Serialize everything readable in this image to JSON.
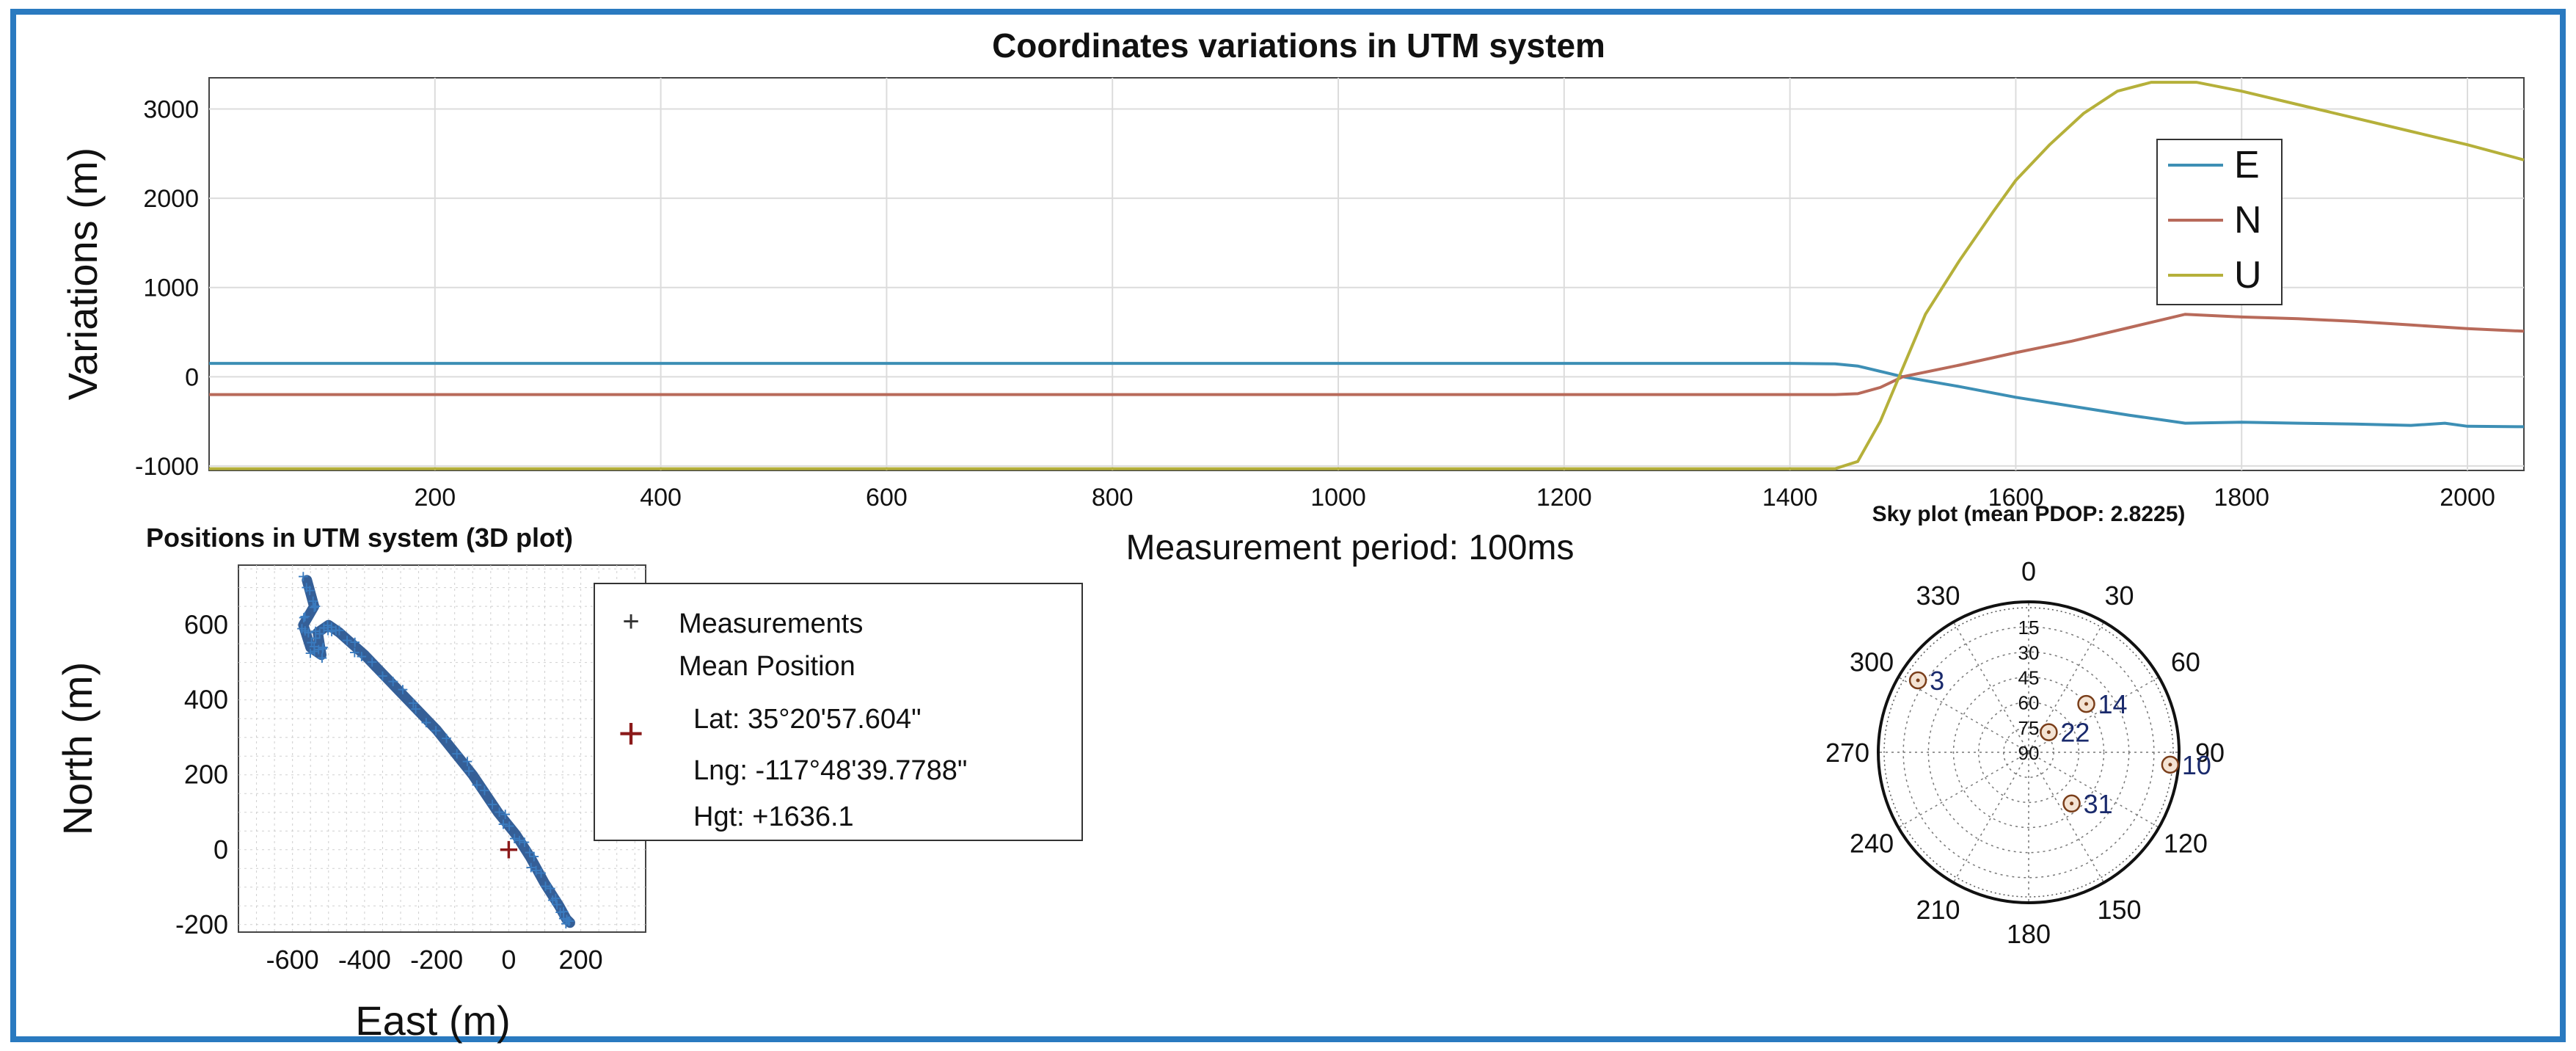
{
  "frame_color": "#2a7ac0",
  "chart_data": [
    {
      "id": "top",
      "type": "line",
      "title": "Coordinates variations in UTM system",
      "ylabel": "Variations (m)",
      "xlabel": "Measurement period: 100ms",
      "xlim": [
        0,
        2050
      ],
      "ylim": [
        -1050,
        3350
      ],
      "xticks": [
        200,
        400,
        600,
        800,
        1000,
        1200,
        1400,
        1600,
        1800,
        2000
      ],
      "yticks": [
        -1000,
        0,
        1000,
        2000,
        3000
      ],
      "grid": true,
      "legend_position": "top-right",
      "series": [
        {
          "name": "E",
          "color": "#3d8fb5",
          "x": [
            0,
            1400,
            1440,
            1460,
            1480,
            1500,
            1550,
            1600,
            1650,
            1700,
            1750,
            1800,
            1850,
            1900,
            1950,
            1980,
            2000,
            2050
          ],
          "y": [
            150,
            150,
            145,
            120,
            60,
            0,
            -110,
            -230,
            -330,
            -430,
            -520,
            -510,
            -520,
            -530,
            -545,
            -520,
            -555,
            -560
          ]
        },
        {
          "name": "N",
          "color": "#b86a5a",
          "x": [
            0,
            1400,
            1440,
            1460,
            1480,
            1500,
            1550,
            1600,
            1650,
            1700,
            1750,
            1800,
            1850,
            1900,
            1950,
            2000,
            2050
          ],
          "y": [
            -200,
            -200,
            -200,
            -190,
            -120,
            0,
            130,
            270,
            400,
            550,
            700,
            670,
            650,
            620,
            580,
            540,
            510
          ]
        },
        {
          "name": "U",
          "color": "#b5b03a",
          "x": [
            0,
            1440,
            1460,
            1480,
            1500,
            1520,
            1550,
            1580,
            1600,
            1630,
            1660,
            1690,
            1720,
            1760,
            1800,
            1850,
            1900,
            1950,
            2000,
            2050
          ],
          "y": [
            -1030,
            -1030,
            -950,
            -500,
            100,
            700,
            1300,
            1850,
            2200,
            2600,
            2950,
            3200,
            3300,
            3300,
            3200,
            3050,
            2900,
            2750,
            2600,
            2430
          ]
        }
      ]
    },
    {
      "id": "positions",
      "type": "scatter",
      "title": "Positions in UTM system (3D plot)",
      "xlabel": "East (m)",
      "ylabel": "North (m)",
      "xlim": [
        -750,
        380
      ],
      "ylim": [
        -220,
        760
      ],
      "xticks": [
        -600,
        -400,
        -200,
        0,
        200
      ],
      "yticks": [
        -200,
        0,
        200,
        400,
        600
      ],
      "grid": true,
      "series": [
        {
          "name": "Measurements",
          "marker": "+",
          "color": "#1f4e8c",
          "path": [
            [
              -560,
              720
            ],
            [
              -540,
              650
            ],
            [
              -570,
              600
            ],
            [
              -550,
              540
            ],
            [
              -520,
              520
            ],
            [
              -530,
              580
            ],
            [
              -500,
              600
            ],
            [
              -470,
              580
            ],
            [
              -400,
              520
            ],
            [
              -300,
              420
            ],
            [
              -200,
              320
            ],
            [
              -100,
              200
            ],
            [
              -30,
              100
            ],
            [
              20,
              40
            ],
            [
              60,
              -20
            ],
            [
              100,
              -90
            ],
            [
              140,
              -150
            ],
            [
              160,
              -185
            ],
            [
              170,
              -195
            ]
          ]
        },
        {
          "name": "Mean Position",
          "marker": "+",
          "color": "#8b1a1a",
          "x": 0,
          "y": 0
        }
      ],
      "legend": {
        "measurements": "Measurements",
        "mean_position": "Mean Position",
        "lat": "Lat: 35°20ʹ57.604ʺ",
        "lng": "Lng: -117°48ʹ39.7788ʺ",
        "hgt": "Hgt: +1636.1"
      }
    },
    {
      "id": "sky",
      "type": "polar",
      "title": "Sky plot (mean PDOP: 2.8225)",
      "azimuth_labels": [
        "0",
        "30",
        "60",
        "90",
        "120",
        "150",
        "180",
        "210",
        "240",
        "270",
        "300",
        "330"
      ],
      "elevation_labels": [
        "15",
        "30",
        "45",
        "60",
        "75",
        "90"
      ],
      "satellites": [
        {
          "prn": "3",
          "azimuth": 303,
          "elevation": 11
        },
        {
          "prn": "14",
          "azimuth": 50,
          "elevation": 45
        },
        {
          "prn": "22",
          "azimuth": 45,
          "elevation": 73
        },
        {
          "prn": "10",
          "azimuth": 95,
          "elevation": 5
        },
        {
          "prn": "31",
          "azimuth": 140,
          "elevation": 50
        }
      ]
    }
  ]
}
